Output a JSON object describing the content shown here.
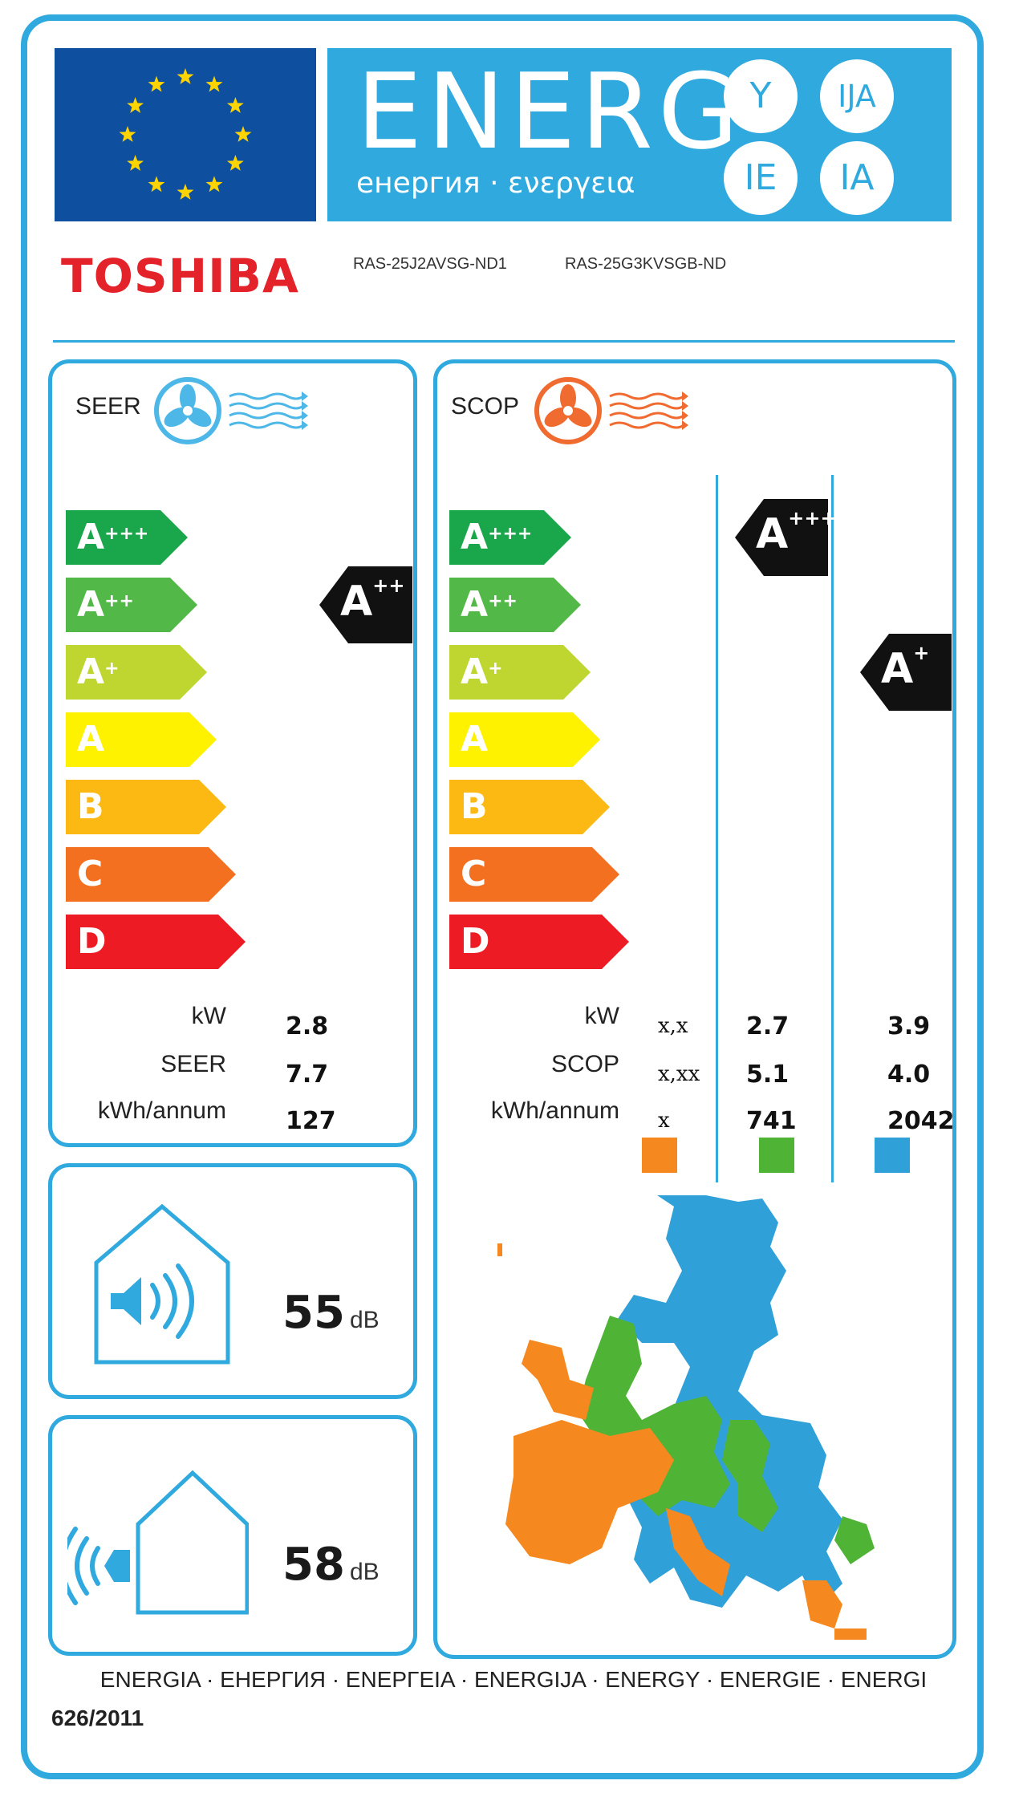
{
  "header": {
    "energy_word": "ENERG",
    "energy_subtitle": "енергия · ενεργεια",
    "suffixes": [
      "Y",
      "IJA",
      "IE",
      "IA"
    ]
  },
  "brand": {
    "name": "TOSHIBA",
    "model_indoor": "RAS-25J2AVSG-ND1",
    "model_outdoor": "RAS-25G3KVSGB-ND"
  },
  "colors": {
    "frame": "#30a9de",
    "eu_flag": "#0e4fa0",
    "star": "#ffd400",
    "brand": "#e4222a",
    "scale": [
      "#1aa64b",
      "#52b847",
      "#bfd630",
      "#fff200",
      "#fdb913",
      "#f37021",
      "#ed1c24"
    ],
    "zone_warm": "#f5891f",
    "zone_average": "#4fb436",
    "zone_cold": "#30a0d8"
  },
  "seer_panel": {
    "title": "SEER",
    "icon": "fan-cooling-icon",
    "scale": [
      {
        "letter": "A",
        "plus": "+++"
      },
      {
        "letter": "A",
        "plus": "++"
      },
      {
        "letter": "A",
        "plus": "+"
      },
      {
        "letter": "A",
        "plus": ""
      },
      {
        "letter": "B",
        "plus": ""
      },
      {
        "letter": "C",
        "plus": ""
      },
      {
        "letter": "D",
        "plus": ""
      }
    ],
    "rating": {
      "letter": "A",
      "plus": "++",
      "class_index": 1
    },
    "rows": [
      {
        "label": "kW",
        "value": "2.8"
      },
      {
        "label": "SEER",
        "value": "7.7"
      },
      {
        "label": "kWh/annum",
        "value": "127"
      }
    ]
  },
  "scop_panel": {
    "title": "SCOP",
    "icon": "fan-heating-icon",
    "scale": [
      {
        "letter": "A",
        "plus": "+++"
      },
      {
        "letter": "A",
        "plus": "++"
      },
      {
        "letter": "A",
        "plus": "+"
      },
      {
        "letter": "A",
        "plus": ""
      },
      {
        "letter": "B",
        "plus": ""
      },
      {
        "letter": "C",
        "plus": ""
      },
      {
        "letter": "D",
        "plus": ""
      }
    ],
    "ratings": [
      {
        "zone": "average",
        "letter": "A",
        "plus": "+++",
        "class_index": 0
      },
      {
        "zone": "cold",
        "letter": "A",
        "plus": "+",
        "class_index": 2
      }
    ],
    "row_labels": [
      "kW",
      "SCOP",
      "kWh/annum"
    ],
    "columns": [
      {
        "zone": "warm",
        "values": [
          "x,x",
          "x,xx",
          "x"
        ]
      },
      {
        "zone": "average",
        "values": [
          "2.7",
          "5.1",
          "741"
        ]
      },
      {
        "zone": "cold",
        "values": [
          "3.9",
          "4.0",
          "2042"
        ]
      }
    ]
  },
  "noise_indoor": {
    "icon": "indoor-sound-icon",
    "value": "55",
    "unit": "dB"
  },
  "noise_outdoor": {
    "icon": "outdoor-sound-icon",
    "value": "58",
    "unit": "dB"
  },
  "map": {
    "icon": "europe-climate-map-icon"
  },
  "footer": {
    "languages": "ENERGIA · ЕНЕРГИЯ · ΕΝΕΡΓΕΙΑ · ENERGIJA · ENERGY · ENERGIE · ENERGI",
    "regulation": "626/2011"
  }
}
